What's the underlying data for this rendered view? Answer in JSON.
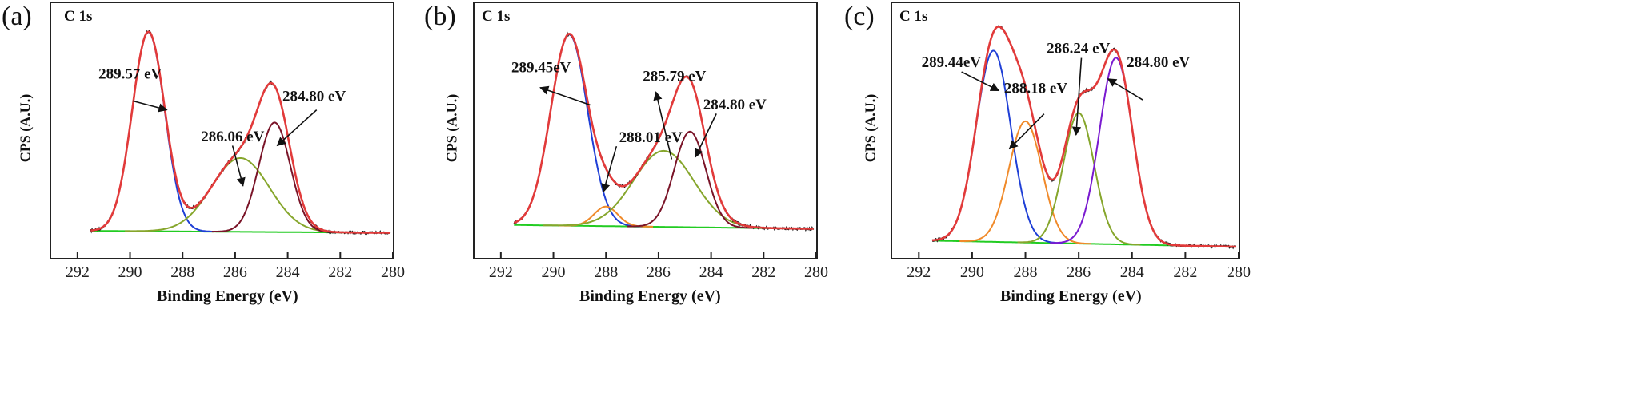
{
  "figure": {
    "panel_labels": [
      "(a)",
      "(b)",
      "(c)"
    ]
  },
  "chart_data": [
    {
      "type": "line",
      "panel": "(a)",
      "corner_label": "C 1s",
      "xlabel": "Binding Energy (eV)",
      "ylabel": "CPS (A.U.)",
      "xlim": [
        293,
        280
      ],
      "x_reversed": true,
      "xticks": [
        292,
        290,
        288,
        286,
        284,
        282,
        280
      ],
      "ylim": [
        0,
        1
      ],
      "baseline": {
        "start": 0.04,
        "end": 0.03
      },
      "peaks": [
        {
          "center": 289.3,
          "amplitude": 0.89,
          "sigma": 0.62,
          "color": "#1f3fd6"
        },
        {
          "center": 285.8,
          "amplitude": 0.33,
          "sigma": 1.1,
          "color": "#86a62c"
        },
        {
          "center": 284.5,
          "amplitude": 0.49,
          "sigma": 0.6,
          "color": "#7a1428"
        }
      ],
      "envelope_color": "#e23a3a",
      "raw_color": "#111111",
      "baseline_color": "#22cc22",
      "annotations": [
        {
          "text": "289.57 eV",
          "tx": 291.2,
          "ty": 0.72,
          "ax1": 289.9,
          "ay1": 0.62,
          "ax2": 288.6,
          "ay2": 0.58
        },
        {
          "text": "286.06 eV",
          "tx": 287.3,
          "ty": 0.44,
          "ax1": 286.1,
          "ay1": 0.42,
          "ax2": 285.7,
          "ay2": 0.24
        },
        {
          "text": "284.80 eV",
          "tx": 284.2,
          "ty": 0.62,
          "ax1": 282.9,
          "ay1": 0.58,
          "ax2": 284.4,
          "ay2": 0.42
        }
      ]
    },
    {
      "type": "line",
      "panel": "(b)",
      "corner_label": "C 1s",
      "xlabel": "Binding Energy (eV)",
      "ylabel": "CPS (A.U.)",
      "xlim": [
        293,
        280
      ],
      "x_reversed": true,
      "xticks": [
        292,
        290,
        288,
        286,
        284,
        282,
        280
      ],
      "ylim": [
        0,
        1
      ],
      "baseline": {
        "start": 0.04,
        "end": 0.02
      },
      "peaks": [
        {
          "center": 289.4,
          "amplitude": 0.88,
          "sigma": 0.7,
          "color": "#1f3fd6"
        },
        {
          "center": 288.0,
          "amplitude": 0.09,
          "sigma": 0.45,
          "color": "#f08a2a"
        },
        {
          "center": 285.8,
          "amplitude": 0.35,
          "sigma": 1.15,
          "color": "#86a62c"
        },
        {
          "center": 284.8,
          "amplitude": 0.44,
          "sigma": 0.6,
          "color": "#7a1428"
        }
      ],
      "envelope_color": "#e23a3a",
      "raw_color": "#111111",
      "baseline_color": "#22cc22",
      "annotations": [
        {
          "text": "289.45eV",
          "tx": 291.6,
          "ty": 0.74,
          "ax1": 288.6,
          "ay1": 0.59,
          "ax2": 290.5,
          "ay2": 0.67
        },
        {
          "text": "288.01 eV",
          "tx": 287.5,
          "ty": 0.42,
          "ax1": 287.6,
          "ay1": 0.4,
          "ax2": 288.1,
          "ay2": 0.19
        },
        {
          "text": "285.79 eV",
          "tx": 286.6,
          "ty": 0.7,
          "ax1": 285.5,
          "ay1": 0.34,
          "ax2": 286.1,
          "ay2": 0.65
        },
        {
          "text": "284.80 eV",
          "tx": 284.3,
          "ty": 0.57,
          "ax1": 283.8,
          "ay1": 0.55,
          "ax2": 284.6,
          "ay2": 0.35
        }
      ]
    },
    {
      "type": "line",
      "panel": "(c)",
      "corner_label": "C 1s",
      "xlabel": "Binding Energy (eV)",
      "ylabel": "CPS (A.U.)",
      "xlim": [
        293,
        280
      ],
      "x_reversed": true,
      "xticks": [
        292,
        290,
        288,
        286,
        284,
        282,
        280
      ],
      "ylim": [
        0,
        1
      ],
      "baseline": {
        "start": 0.04,
        "end": 0.01
      },
      "peaks": [
        {
          "center": 289.2,
          "amplitude": 0.82,
          "sigma": 0.65,
          "color": "#1f3fd6"
        },
        {
          "center": 288.0,
          "amplitude": 0.52,
          "sigma": 0.62,
          "color": "#f08a2a"
        },
        {
          "center": 286.0,
          "amplitude": 0.56,
          "sigma": 0.58,
          "color": "#86a62c"
        },
        {
          "center": 284.6,
          "amplitude": 0.8,
          "sigma": 0.62,
          "color": "#7a1ad0"
        }
      ],
      "envelope_color": "#e23a3a",
      "raw_color": "#111111",
      "baseline_color": "#22cc22",
      "annotations": [
        {
          "text": "289.44eV",
          "tx": 291.9,
          "ty": 0.78,
          "ax1": 290.4,
          "ay1": 0.76,
          "ax2": 289.0,
          "ay2": 0.68
        },
        {
          "text": "288.18 eV",
          "tx": 288.8,
          "ty": 0.67,
          "ax1": 287.3,
          "ay1": 0.58,
          "ax2": 288.6,
          "ay2": 0.43
        },
        {
          "text": "286.24 eV",
          "tx": 287.2,
          "ty": 0.84,
          "ax1": 285.9,
          "ay1": 0.82,
          "ax2": 286.1,
          "ay2": 0.49
        },
        {
          "text": "284.80 eV",
          "tx": 284.2,
          "ty": 0.78,
          "ax1": 283.6,
          "ay1": 0.64,
          "ax2": 284.9,
          "ay2": 0.73
        }
      ]
    }
  ]
}
